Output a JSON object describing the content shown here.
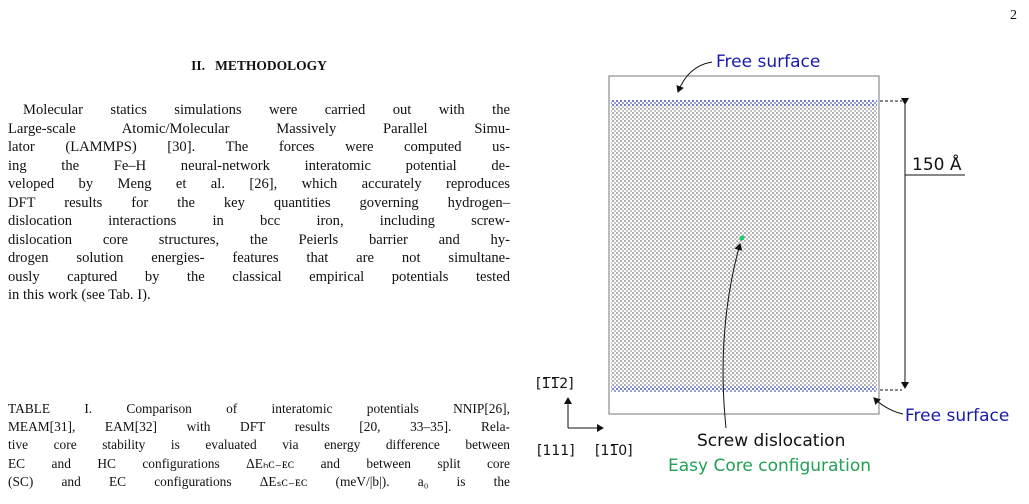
{
  "page_number": "2",
  "section": {
    "heading": "II.   METHODOLOGY",
    "paragraph_lines": [
      "Molecular statics simulations were carried out with the",
      "Large-scale Atomic/Molecular Massively Parallel Simu-",
      "lator (LAMMPS) [30].  The forces were computed us-",
      "ing the Fe–H neural-network interatomic potential de-",
      "veloped by Meng et al. [26], which accurately reproduces",
      "DFT results for the key quantities governing hydrogen–",
      "dislocation interactions in bcc iron, including screw-",
      "dislocation core structures, the Peierls barrier and hy-",
      "drogen solution energies- features that are not simultane-",
      "ously captured by the classical empirical potentials tested",
      "in this work (see Tab. I)."
    ]
  },
  "table_caption_lines": [
    "TABLE I. Comparison of interatomic potentials NNIP[26],",
    "MEAM[31], EAM[32] with DFT results [20, 33–35].  Rela-",
    "tive core stability is evaluated via energy difference between",
    "EC and HC configurations ΔEₕᴄ₋ᴇᴄ and between split core",
    "(SC) and EC configurations ΔEₛᴄ₋ᴇᴄ (meV/|b|). a₀ is the"
  ],
  "figure": {
    "free_surface_top": "Free surface",
    "free_surface_bottom": "Free surface",
    "thickness": "150 Å",
    "dislocation": "Screw dislocation",
    "core": "Easy Core configuration",
    "axis_vertical": "[1̅1̅2]",
    "axis_x1": "[111]",
    "axis_x2": "[11̅0]"
  }
}
